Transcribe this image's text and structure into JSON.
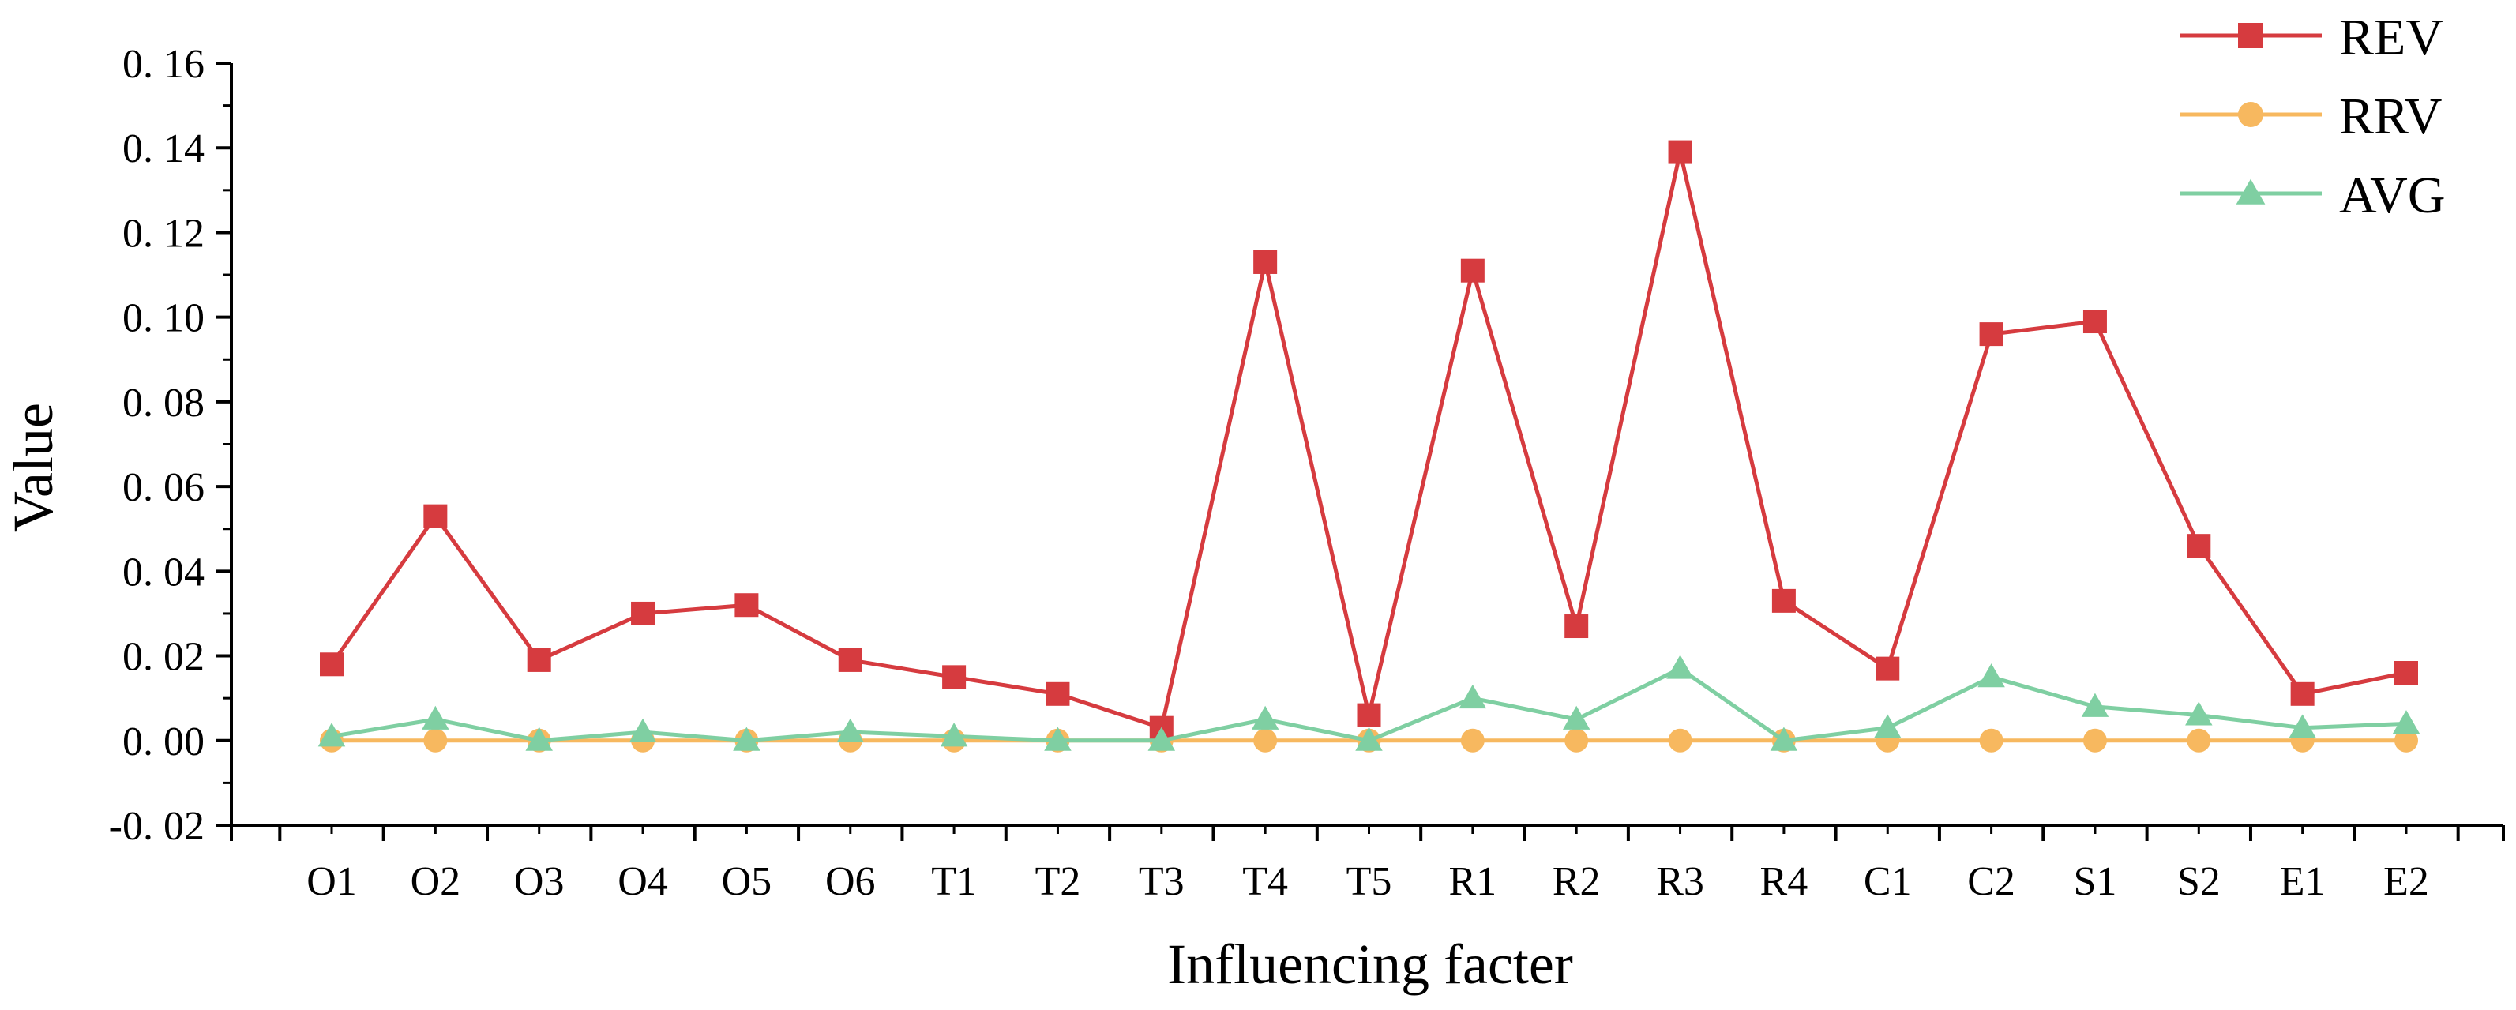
{
  "chart_data": {
    "type": "line",
    "title": "",
    "xlabel": "Influencing facter",
    "ylabel": "Value",
    "categories": [
      "O1",
      "O2",
      "O3",
      "O4",
      "O5",
      "O6",
      "T1",
      "T2",
      "T3",
      "T4",
      "T5",
      "R1",
      "R2",
      "R3",
      "R4",
      "C1",
      "C2",
      "S1",
      "S2",
      "E1",
      "E2"
    ],
    "ylim": [
      -0.02,
      0.16
    ],
    "ytick_values": [
      -0.02,
      0.0,
      0.02,
      0.04,
      0.06,
      0.08,
      0.1,
      0.12,
      0.14,
      0.16
    ],
    "ytick_labels": [
      "-0. 02",
      "0. 00",
      "0. 02",
      "0. 04",
      "0. 06",
      "0. 08",
      "0. 10",
      "0. 12",
      "0. 14",
      "0. 16"
    ],
    "grid": false,
    "legend_position": "top-right",
    "series": [
      {
        "name": "REV",
        "color": "#d63b3f",
        "marker": "square",
        "values": [
          0.018,
          0.053,
          0.019,
          0.03,
          0.032,
          0.019,
          0.015,
          0.011,
          0.003,
          0.113,
          0.006,
          0.111,
          0.027,
          0.139,
          0.033,
          0.017,
          0.096,
          0.099,
          0.046,
          0.011,
          0.016
        ]
      },
      {
        "name": "RRV",
        "color": "#f7b85f",
        "marker": "circle",
        "values": [
          0,
          0,
          0,
          0,
          0,
          0,
          0,
          0,
          0,
          0,
          0,
          0,
          0,
          0,
          0,
          0,
          0,
          0,
          0,
          0,
          0
        ]
      },
      {
        "name": "AVG",
        "color": "#7fcfa2",
        "marker": "triangle",
        "values": [
          0.001,
          0.005,
          0.0,
          0.002,
          0.0,
          0.002,
          0.001,
          0.0,
          0.0,
          0.005,
          0.0,
          0.01,
          0.005,
          0.017,
          0.0,
          0.003,
          0.015,
          0.008,
          0.006,
          0.003,
          0.004
        ]
      }
    ]
  }
}
